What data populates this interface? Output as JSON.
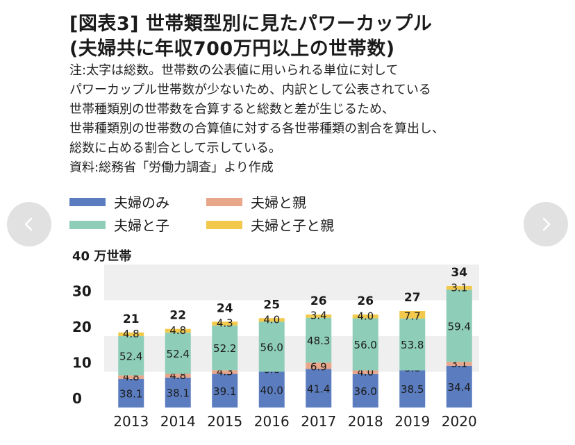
{
  "header": {
    "title_line1": "[図表3] 世帯類型別に見たパワーカップル",
    "title_line2": "(夫婦共に年収700万円以上の世帯数)",
    "notes": [
      "注:太字は総数。世帯数の公表値に用いられる単位に対して",
      "パワーカップル世帯数が少ないため、内訳として公表されている",
      "世帯種類別の世帯数を合算すると総数と差が生じるため、",
      "世帯種類別の世帯数の合算値に対する各世帯種類の割合を算出し、",
      "総数に占める割合として示している。",
      "資料:総務省「労働力調査」より作成"
    ]
  },
  "colors": {
    "couple_only": "#5b7dbf",
    "couple_parent": "#e8a68a",
    "couple_child": "#8ecdb8",
    "couple_child_parent": "#f2c94c",
    "band": "#efefef"
  },
  "nav": {
    "prev_icon": "chevron-left-icon",
    "next_icon": "chevron-right-icon"
  },
  "chart_data": {
    "type": "bar",
    "stacked": true,
    "unit_label": "40 万世帯",
    "yticks": [
      "0",
      "10",
      "20",
      "30"
    ],
    "ylim": [
      0,
      40
    ],
    "categories": [
      "2013",
      "2014",
      "2015",
      "2016",
      "2017",
      "2018",
      "2019",
      "2020"
    ],
    "totals": [
      21,
      22,
      24,
      25,
      26,
      26,
      27,
      34
    ],
    "series": [
      {
        "name": "夫婦のみ",
        "color": "#5b7dbf",
        "shares": [
          38.1,
          38.1,
          39.1,
          40.0,
          41.4,
          36.0,
          38.5,
          34.4
        ],
        "labels": [
          "38.1",
          "38.1",
          "39.1",
          "40.0",
          "41.4",
          "36.0",
          "38.5",
          "34.4"
        ]
      },
      {
        "name": "夫婦と親",
        "color": "#e8a68a",
        "shares": [
          4.8,
          4.8,
          4.3,
          0.0,
          6.9,
          4.0,
          0.0,
          3.1
        ],
        "labels": [
          "4.8",
          "4.8",
          "4.3",
          "0.0",
          "6.9",
          "4.0",
          "0.0",
          "3.1"
        ]
      },
      {
        "name": "夫婦と子",
        "color": "#8ecdb8",
        "shares": [
          52.4,
          52.4,
          52.2,
          56.0,
          48.3,
          56.0,
          53.8,
          59.4
        ],
        "labels": [
          "52.4",
          "52.4",
          "52.2",
          "56.0",
          "48.3",
          "56.0",
          "53.8",
          "59.4"
        ]
      },
      {
        "name": "夫婦と子と親",
        "color": "#f2c94c",
        "shares": [
          4.8,
          4.8,
          4.3,
          4.0,
          3.4,
          4.0,
          7.7,
          3.1
        ],
        "labels": [
          "4.8",
          "4.8",
          "4.3",
          "4.0",
          "3.4",
          "4.0",
          "7.7",
          "3.1"
        ]
      }
    ],
    "grid": "alternating bands",
    "legend": "top-left"
  }
}
